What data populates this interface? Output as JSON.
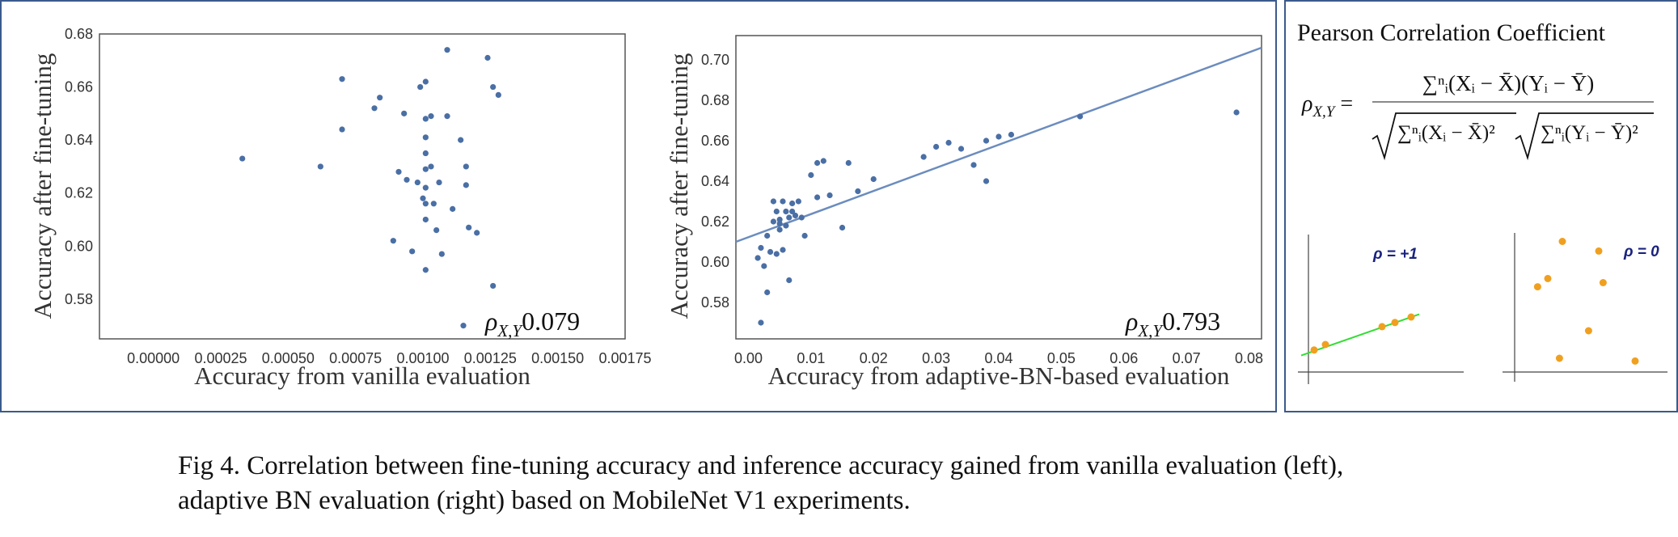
{
  "chart_data": [
    {
      "type": "scatter",
      "xlabel": "Accuracy from vanilla evaluation",
      "ylabel": "Accuracy after fine-tuning",
      "xlim": [
        -0.0002,
        0.00175
      ],
      "ylim": [
        0.565,
        0.68
      ],
      "xticks": [
        "0.00000",
        "0.00025",
        "0.00050",
        "0.00075",
        "0.00100",
        "0.00125",
        "0.00150",
        "0.00175"
      ],
      "yticks": [
        "0.58",
        "0.60",
        "0.62",
        "0.64",
        "0.66",
        "0.68"
      ],
      "annotation_prefix": "ρX,Y = ",
      "correlation": "0.079",
      "grid": false,
      "points": [
        [
          0.00033,
          0.633
        ],
        [
          0.00062,
          0.63
        ],
        [
          0.0007,
          0.663
        ],
        [
          0.0007,
          0.644
        ],
        [
          0.00082,
          0.652
        ],
        [
          0.00084,
          0.656
        ],
        [
          0.00089,
          0.602
        ],
        [
          0.00091,
          0.628
        ],
        [
          0.00093,
          0.65
        ],
        [
          0.00094,
          0.625
        ],
        [
          0.00096,
          0.598
        ],
        [
          0.00098,
          0.624
        ],
        [
          0.00099,
          0.66
        ],
        [
          0.001,
          0.618
        ],
        [
          0.00101,
          0.662
        ],
        [
          0.00101,
          0.648
        ],
        [
          0.00101,
          0.641
        ],
        [
          0.00101,
          0.635
        ],
        [
          0.00101,
          0.629
        ],
        [
          0.00101,
          0.622
        ],
        [
          0.00101,
          0.616
        ],
        [
          0.00101,
          0.61
        ],
        [
          0.00101,
          0.591
        ],
        [
          0.00103,
          0.649
        ],
        [
          0.00103,
          0.63
        ],
        [
          0.00104,
          0.616
        ],
        [
          0.00105,
          0.606
        ],
        [
          0.00106,
          0.624
        ],
        [
          0.00107,
          0.597
        ],
        [
          0.00109,
          0.674
        ],
        [
          0.00109,
          0.649
        ],
        [
          0.00111,
          0.614
        ],
        [
          0.00114,
          0.64
        ],
        [
          0.00116,
          0.63
        ],
        [
          0.00116,
          0.623
        ],
        [
          0.00117,
          0.607
        ],
        [
          0.0012,
          0.605
        ],
        [
          0.00115,
          0.57
        ],
        [
          0.00124,
          0.671
        ],
        [
          0.00126,
          0.66
        ],
        [
          0.00128,
          0.657
        ],
        [
          0.00126,
          0.585
        ]
      ]
    },
    {
      "type": "scatter",
      "xlabel": "Accuracy from adaptive-BN-based evaluation",
      "ylabel": "Accuracy after fine-tuning",
      "xlim": [
        -0.002,
        0.082
      ],
      "ylim": [
        0.562,
        0.712
      ],
      "xticks": [
        "0.00",
        "0.01",
        "0.02",
        "0.03",
        "0.04",
        "0.05",
        "0.06",
        "0.07",
        "0.08"
      ],
      "yticks": [
        "0.58",
        "0.60",
        "0.62",
        "0.64",
        "0.66",
        "0.68",
        "0.70"
      ],
      "annotation_prefix": "ρX,Y = ",
      "correlation": "0.793",
      "grid": false,
      "trendline": {
        "x": [
          -0.002,
          0.082
        ],
        "y": [
          0.61,
          0.706
        ]
      },
      "points": [
        [
          0.0015,
          0.602
        ],
        [
          0.002,
          0.57
        ],
        [
          0.002,
          0.607
        ],
        [
          0.0025,
          0.598
        ],
        [
          0.003,
          0.585
        ],
        [
          0.003,
          0.613
        ],
        [
          0.0035,
          0.605
        ],
        [
          0.004,
          0.63
        ],
        [
          0.004,
          0.62
        ],
        [
          0.0045,
          0.604
        ],
        [
          0.0045,
          0.625
        ],
        [
          0.005,
          0.616
        ],
        [
          0.005,
          0.619
        ],
        [
          0.005,
          0.621
        ],
        [
          0.0055,
          0.606
        ],
        [
          0.0055,
          0.63
        ],
        [
          0.006,
          0.625
        ],
        [
          0.006,
          0.618
        ],
        [
          0.0065,
          0.591
        ],
        [
          0.0065,
          0.622
        ],
        [
          0.007,
          0.629
        ],
        [
          0.007,
          0.625
        ],
        [
          0.0075,
          0.623
        ],
        [
          0.008,
          0.63
        ],
        [
          0.0085,
          0.622
        ],
        [
          0.009,
          0.613
        ],
        [
          0.01,
          0.643
        ],
        [
          0.011,
          0.632
        ],
        [
          0.011,
          0.649
        ],
        [
          0.012,
          0.65
        ],
        [
          0.013,
          0.633
        ],
        [
          0.015,
          0.617
        ],
        [
          0.016,
          0.649
        ],
        [
          0.0175,
          0.635
        ],
        [
          0.02,
          0.641
        ],
        [
          0.028,
          0.652
        ],
        [
          0.03,
          0.657
        ],
        [
          0.032,
          0.659
        ],
        [
          0.034,
          0.656
        ],
        [
          0.036,
          0.648
        ],
        [
          0.038,
          0.66
        ],
        [
          0.038,
          0.64
        ],
        [
          0.04,
          0.662
        ],
        [
          0.042,
          0.663
        ],
        [
          0.053,
          0.672
        ],
        [
          0.078,
          0.674
        ]
      ]
    },
    {
      "type": "scatter",
      "title": "Pearson Correlation Coefficient",
      "examples": [
        {
          "label": "ρ = +1",
          "points": [
            [
              0.1,
              0.16
            ],
            [
              0.17,
              0.2
            ],
            [
              0.52,
              0.33
            ],
            [
              0.6,
              0.36
            ],
            [
              0.7,
              0.4
            ]
          ],
          "line": [
            [
              0.02,
              0.12
            ],
            [
              0.75,
              0.42
            ]
          ]
        },
        {
          "label": "ρ = 0",
          "points": [
            [
              0.3,
              0.95
            ],
            [
              0.55,
              0.88
            ],
            [
              0.13,
              0.62
            ],
            [
              0.2,
              0.68
            ],
            [
              0.58,
              0.65
            ],
            [
              0.48,
              0.3
            ],
            [
              0.28,
              0.1
            ],
            [
              0.8,
              0.08
            ]
          ]
        }
      ]
    }
  ],
  "formula": {
    "lhs": "ρX,Y =",
    "numerator": "∑ⁿᵢ(Xᵢ − X̄)(Yᵢ − Ȳ)",
    "den_left": "∑ⁿᵢ(Xᵢ − X̄)²",
    "den_right": "∑ⁿᵢ(Yᵢ − Ȳ)²"
  },
  "caption": {
    "line1": "Fig 4. Correlation between fine-tuning accuracy and inference accuracy gained from vanilla evaluation (left),",
    "line2": "adaptive BN evaluation (right) based on MobileNet V1 experiments."
  }
}
